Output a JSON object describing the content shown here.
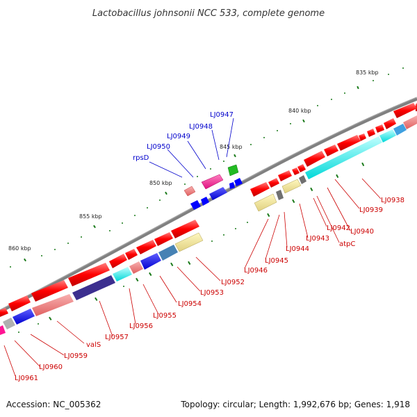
{
  "title": "Lactobacillus johnsonii NCC 533, complete genome",
  "footer": {
    "accession": "Accession: NC_005362",
    "summary": "Topology: circular; Length: 1,992,676 bp; Genes: 1,918"
  },
  "scale_ticks": [
    "835 kbp",
    "840 kbp",
    "845 kbp",
    "850 kbp",
    "855 kbp",
    "860 kbp"
  ],
  "labels_top": [
    "LJ0947",
    "LJ0948",
    "LJ0949",
    "LJ0950",
    "rpsD"
  ],
  "labels_bottom": [
    "LJ0938",
    "LJ0939",
    "LJ0940",
    "atpC",
    "LJ0942",
    "LJ0943",
    "LJ0944",
    "LJ0945",
    "LJ0946",
    "LJ0952",
    "LJ0953",
    "LJ0954",
    "LJ0955",
    "LJ0956",
    "LJ0957",
    "valS",
    "LJ0959",
    "LJ0960",
    "LJ0961"
  ],
  "colors": {
    "backbone": "#808080",
    "red": "#ff0000",
    "pink": "#f08080",
    "magenta": "#ff1493",
    "blue": "#0000ff",
    "navy": "#3c2f8f",
    "cyan": "#00ffff",
    "steel": "#4682b4",
    "khaki": "#f0e68c",
    "green": "#22bb22",
    "gray": "#696969",
    "label_blue": "#0000cc",
    "label_red": "#cc0000"
  }
}
